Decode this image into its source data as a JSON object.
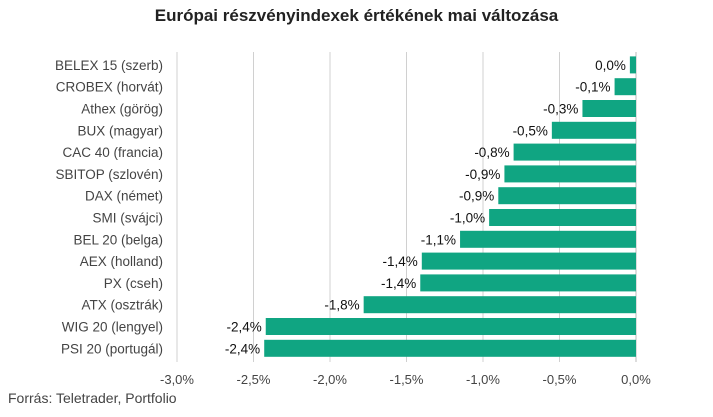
{
  "title": "Európai részvényindexek értékének mai változása",
  "source": "Forrás: Teletrader, Portfolio",
  "colors": {
    "bar": "#10a582",
    "grid": "#d0d0d0",
    "axis": "#bbbbbb",
    "label": "#444444",
    "value_label": "#111111"
  },
  "chart_data": {
    "type": "bar",
    "orientation": "horizontal",
    "categories": [
      "BELEX 15 (szerb)",
      "CROBEX (horvát)",
      "Athex (görög)",
      "BUX (magyar)",
      "CAC 40 (francia)",
      "SBITOP (szlovén)",
      "DAX (német)",
      "SMI (svájci)",
      "BEL 20 (belga)",
      "AEX (holland)",
      "PX (cseh)",
      "ATX (osztrák)",
      "WIG 20 (lengyel)",
      "PSI 20 (portugál)"
    ],
    "values": [
      -0.04,
      -0.14,
      -0.35,
      -0.55,
      -0.8,
      -0.86,
      -0.9,
      -0.96,
      -1.15,
      -1.4,
      -1.41,
      -1.78,
      -2.42,
      -2.43
    ],
    "value_labels": [
      "0,0%",
      "-0,1%",
      "-0,3%",
      "-0,5%",
      "-0,8%",
      "-0,9%",
      "-0,9%",
      "-1,0%",
      "-1,1%",
      "-1,4%",
      "-1,4%",
      "-1,8%",
      "-2,4%",
      "-2,4%"
    ],
    "xlim": [
      -3.0,
      0.0
    ],
    "x_ticks": [
      -3.0,
      -2.5,
      -2.0,
      -1.5,
      -1.0,
      -0.5,
      0.0
    ],
    "x_tick_labels": [
      "-3,0%",
      "-2,5%",
      "-2,0%",
      "-1,5%",
      "-1,0%",
      "-0,5%",
      "0,0%"
    ],
    "grid": true,
    "legend": "none",
    "xlabel": "",
    "ylabel": ""
  }
}
